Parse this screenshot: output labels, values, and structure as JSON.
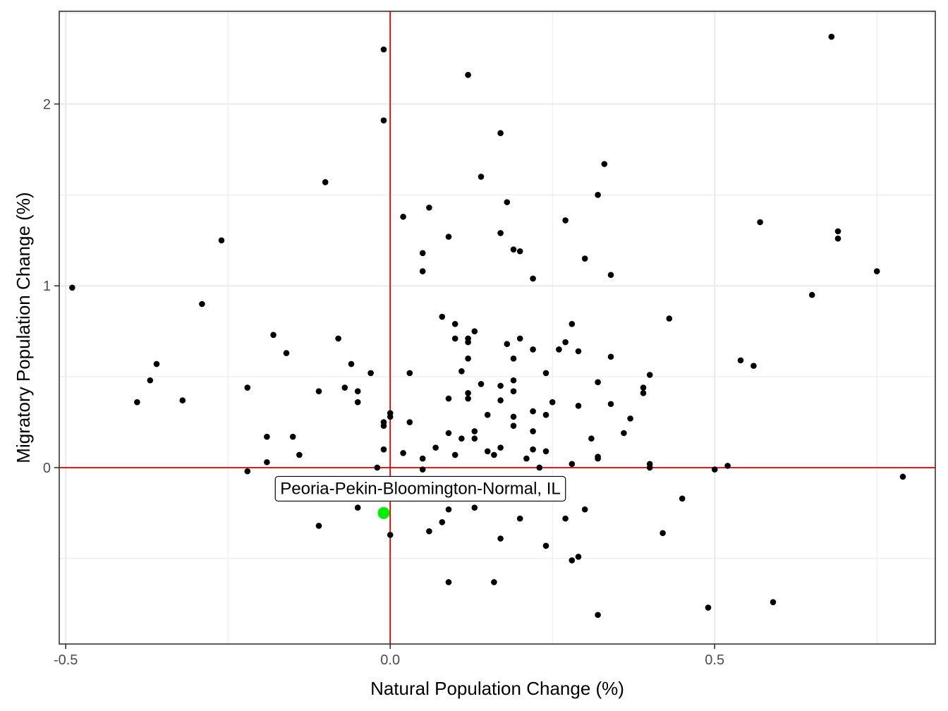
{
  "chart_data": {
    "type": "scatter",
    "xlabel": "Natural Population Change (%)",
    "ylabel": "Migratory Population Change (%)",
    "xlim": [
      -0.51,
      0.84
    ],
    "ylim": [
      -0.97,
      2.51
    ],
    "x_ticks": [
      -0.5,
      0.0,
      0.5
    ],
    "x_tick_labels": [
      "-0.5",
      "0.0",
      "0.5"
    ],
    "y_ticks": [
      0,
      1,
      2
    ],
    "y_tick_labels": [
      "0",
      "1",
      "2"
    ],
    "grid": true,
    "reference_lines": {
      "x": 0,
      "y": 0,
      "color": "#dd0000"
    },
    "colors": {
      "points": "#000000",
      "highlight": "#00ee00",
      "ref_line": "#dd0000",
      "panel_border": "#333333",
      "grid": "#ebebeb"
    },
    "highlight": {
      "label": "Peoria-Pekin-Bloomington-Normal, IL",
      "x": -0.01,
      "y": -0.25
    },
    "points": [
      [
        -0.49,
        0.99
      ],
      [
        -0.39,
        0.36
      ],
      [
        -0.37,
        0.48
      ],
      [
        -0.36,
        0.57
      ],
      [
        -0.32,
        0.37
      ],
      [
        -0.29,
        0.9
      ],
      [
        -0.26,
        1.25
      ],
      [
        -0.22,
        0.44
      ],
      [
        -0.22,
        -0.02
      ],
      [
        -0.19,
        0.17
      ],
      [
        -0.19,
        0.03
      ],
      [
        -0.18,
        0.73
      ],
      [
        -0.16,
        0.63
      ],
      [
        -0.15,
        0.17
      ],
      [
        -0.14,
        0.07
      ],
      [
        -0.11,
        0.42
      ],
      [
        -0.11,
        -0.32
      ],
      [
        -0.1,
        1.57
      ],
      [
        -0.08,
        0.71
      ],
      [
        -0.07,
        0.44
      ],
      [
        -0.06,
        0.57
      ],
      [
        -0.05,
        0.42
      ],
      [
        -0.05,
        0.36
      ],
      [
        -0.05,
        -0.22
      ],
      [
        -0.03,
        0.52
      ],
      [
        -0.02,
        0.0
      ],
      [
        -0.01,
        2.3
      ],
      [
        -0.01,
        1.91
      ],
      [
        -0.01,
        0.25
      ],
      [
        -0.01,
        0.23
      ],
      [
        -0.01,
        0.1
      ],
      [
        0.0,
        0.3
      ],
      [
        0.0,
        0.28
      ],
      [
        0.0,
        -0.37
      ],
      [
        0.02,
        1.38
      ],
      [
        0.02,
        0.08
      ],
      [
        0.03,
        0.52
      ],
      [
        0.03,
        0.25
      ],
      [
        0.05,
        1.18
      ],
      [
        0.05,
        1.08
      ],
      [
        0.05,
        0.05
      ],
      [
        0.05,
        -0.01
      ],
      [
        0.06,
        1.43
      ],
      [
        0.06,
        -0.35
      ],
      [
        0.07,
        0.11
      ],
      [
        0.08,
        0.83
      ],
      [
        0.08,
        -0.3
      ],
      [
        0.09,
        1.27
      ],
      [
        0.09,
        0.38
      ],
      [
        0.09,
        0.19
      ],
      [
        0.09,
        -0.23
      ],
      [
        0.09,
        -0.63
      ],
      [
        0.1,
        0.79
      ],
      [
        0.1,
        0.71
      ],
      [
        0.1,
        0.07
      ],
      [
        0.11,
        0.53
      ],
      [
        0.11,
        0.16
      ],
      [
        0.12,
        2.16
      ],
      [
        0.12,
        0.71
      ],
      [
        0.12,
        0.69
      ],
      [
        0.12,
        0.6
      ],
      [
        0.12,
        0.41
      ],
      [
        0.12,
        0.38
      ],
      [
        0.13,
        0.75
      ],
      [
        0.13,
        0.2
      ],
      [
        0.13,
        0.16
      ],
      [
        0.13,
        -0.22
      ],
      [
        0.14,
        1.6
      ],
      [
        0.14,
        0.46
      ],
      [
        0.15,
        0.29
      ],
      [
        0.15,
        0.09
      ],
      [
        0.16,
        0.07
      ],
      [
        0.16,
        -0.63
      ],
      [
        0.17,
        1.84
      ],
      [
        0.17,
        1.29
      ],
      [
        0.17,
        0.45
      ],
      [
        0.17,
        0.37
      ],
      [
        0.17,
        0.11
      ],
      [
        0.17,
        -0.39
      ],
      [
        0.18,
        1.46
      ],
      [
        0.18,
        0.68
      ],
      [
        0.19,
        1.2
      ],
      [
        0.19,
        0.6
      ],
      [
        0.19,
        0.48
      ],
      [
        0.19,
        0.42
      ],
      [
        0.19,
        0.28
      ],
      [
        0.19,
        0.23
      ],
      [
        0.2,
        1.19
      ],
      [
        0.2,
        0.71
      ],
      [
        0.2,
        -0.28
      ],
      [
        0.21,
        0.05
      ],
      [
        0.22,
        1.04
      ],
      [
        0.22,
        0.65
      ],
      [
        0.22,
        0.31
      ],
      [
        0.22,
        0.2
      ],
      [
        0.22,
        0.1
      ],
      [
        0.23,
        0.0
      ],
      [
        0.24,
        0.52
      ],
      [
        0.24,
        0.29
      ],
      [
        0.24,
        0.09
      ],
      [
        0.24,
        -0.43
      ],
      [
        0.25,
        0.36
      ],
      [
        0.26,
        0.65
      ],
      [
        0.27,
        1.36
      ],
      [
        0.27,
        0.69
      ],
      [
        0.27,
        -0.28
      ],
      [
        0.28,
        0.79
      ],
      [
        0.28,
        0.02
      ],
      [
        0.28,
        -0.51
      ],
      [
        0.29,
        0.64
      ],
      [
        0.29,
        0.34
      ],
      [
        0.29,
        -0.49
      ],
      [
        0.3,
        1.15
      ],
      [
        0.3,
        -0.23
      ],
      [
        0.31,
        0.16
      ],
      [
        0.32,
        1.5
      ],
      [
        0.32,
        0.47
      ],
      [
        0.32,
        0.06
      ],
      [
        0.32,
        0.05
      ],
      [
        0.32,
        -0.81
      ],
      [
        0.33,
        1.67
      ],
      [
        0.34,
        1.06
      ],
      [
        0.34,
        0.61
      ],
      [
        0.34,
        0.35
      ],
      [
        0.36,
        0.19
      ],
      [
        0.37,
        0.27
      ],
      [
        0.39,
        0.44
      ],
      [
        0.39,
        0.41
      ],
      [
        0.4,
        0.51
      ],
      [
        0.4,
        0.02
      ],
      [
        0.4,
        0.0
      ],
      [
        0.42,
        -0.36
      ],
      [
        0.43,
        0.82
      ],
      [
        0.45,
        -0.17
      ],
      [
        0.49,
        -0.77
      ],
      [
        0.5,
        -0.01
      ],
      [
        0.52,
        0.01
      ],
      [
        0.54,
        0.59
      ],
      [
        0.56,
        0.56
      ],
      [
        0.57,
        1.35
      ],
      [
        0.59,
        -0.74
      ],
      [
        0.65,
        0.95
      ],
      [
        0.68,
        2.37
      ],
      [
        0.69,
        1.3
      ],
      [
        0.69,
        1.26
      ],
      [
        0.75,
        1.08
      ],
      [
        0.79,
        -0.05
      ]
    ]
  }
}
